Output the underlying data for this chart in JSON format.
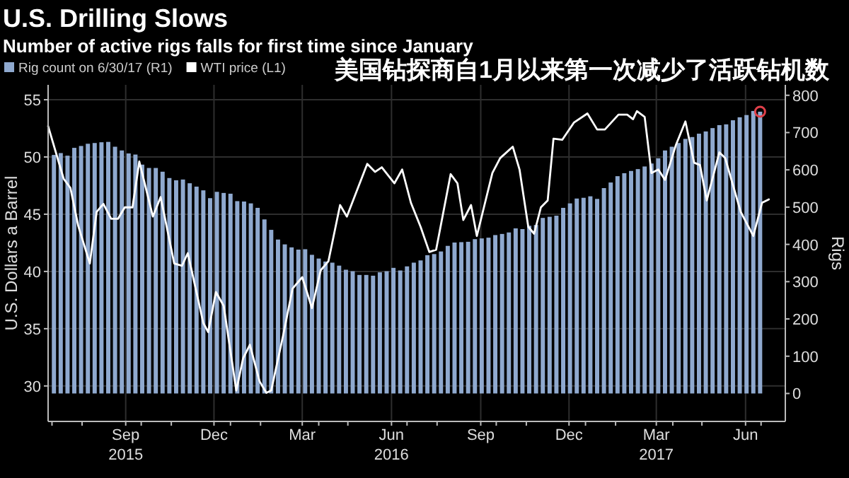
{
  "chart_data": {
    "type": "bar",
    "title": "U.S. Drilling Slows",
    "subtitle": "Number of active rigs falls for first time since January",
    "annotations": [
      "美国钻探商自1月以来第一次减少了活跃钻机数"
    ],
    "ylabel": "U.S. Dollars a Barrel",
    "y2label": "Rigs",
    "legend": "top left",
    "grid": true,
    "xlim": [
      "2015-06-27",
      "2017-07-26"
    ],
    "xticks": [
      {
        "value": "2015-07-01",
        "label": null
      },
      {
        "value": "2015-08-01",
        "label": null
      },
      {
        "value": "2015-09-15",
        "label": "Sep\n2015"
      },
      {
        "value": "2015-10-01",
        "label": null
      },
      {
        "value": "2015-11-01",
        "label": null
      },
      {
        "value": "2015-12-15",
        "label": "Dec"
      },
      {
        "value": "2016-01-01",
        "label": null
      },
      {
        "value": "2016-02-01",
        "label": null
      },
      {
        "value": "2016-03-15",
        "label": "Mar"
      },
      {
        "value": "2016-04-01",
        "label": null
      },
      {
        "value": "2016-05-01",
        "label": null
      },
      {
        "value": "2016-06-15",
        "label": "Jun\n2016"
      },
      {
        "value": "2016-07-01",
        "label": null
      },
      {
        "value": "2016-08-01",
        "label": null
      },
      {
        "value": "2016-09-15",
        "label": "Sep"
      },
      {
        "value": "2016-10-01",
        "label": null
      },
      {
        "value": "2016-11-01",
        "label": null
      },
      {
        "value": "2016-12-15",
        "label": "Dec"
      },
      {
        "value": "2017-01-01",
        "label": null
      },
      {
        "value": "2017-02-01",
        "label": null
      },
      {
        "value": "2017-03-15",
        "label": "Mar\n2017"
      },
      {
        "value": "2017-04-01",
        "label": null
      },
      {
        "value": "2017-05-01",
        "label": null
      },
      {
        "value": "2017-06-15",
        "label": "Jun"
      },
      {
        "value": "2017-07-01",
        "label": null
      }
    ],
    "ylim": [
      26.9,
      56.3
    ],
    "yticks": [
      30,
      35,
      40,
      45,
      50,
      55
    ],
    "y2lim": [
      -75,
      828
    ],
    "y2ticks": [
      0,
      100,
      200,
      300,
      400,
      500,
      600,
      700,
      800
    ],
    "x": [
      "2015-07-03",
      "2015-07-10",
      "2015-07-17",
      "2015-07-24",
      "2015-07-31",
      "2015-08-07",
      "2015-08-14",
      "2015-08-21",
      "2015-08-28",
      "2015-09-04",
      "2015-09-11",
      "2015-09-18",
      "2015-09-25",
      "2015-10-02",
      "2015-10-09",
      "2015-10-16",
      "2015-10-23",
      "2015-10-30",
      "2015-11-06",
      "2015-11-13",
      "2015-11-20",
      "2015-11-27",
      "2015-12-04",
      "2015-12-11",
      "2015-12-18",
      "2015-12-25",
      "2016-01-01",
      "2016-01-08",
      "2016-01-15",
      "2016-01-22",
      "2016-01-29",
      "2016-02-05",
      "2016-02-12",
      "2016-02-19",
      "2016-02-26",
      "2016-03-04",
      "2016-03-11",
      "2016-03-18",
      "2016-03-25",
      "2016-04-01",
      "2016-04-08",
      "2016-04-15",
      "2016-04-22",
      "2016-04-29",
      "2016-05-06",
      "2016-05-13",
      "2016-05-20",
      "2016-05-27",
      "2016-06-03",
      "2016-06-10",
      "2016-06-17",
      "2016-06-24",
      "2016-07-01",
      "2016-07-08",
      "2016-07-15",
      "2016-07-22",
      "2016-07-29",
      "2016-08-05",
      "2016-08-12",
      "2016-08-19",
      "2016-08-26",
      "2016-09-02",
      "2016-09-09",
      "2016-09-16",
      "2016-09-23",
      "2016-09-30",
      "2016-10-07",
      "2016-10-14",
      "2016-10-21",
      "2016-10-28",
      "2016-11-04",
      "2016-11-11",
      "2016-11-18",
      "2016-11-25",
      "2016-12-02",
      "2016-12-09",
      "2016-12-16",
      "2016-12-23",
      "2016-12-30",
      "2017-01-06",
      "2017-01-13",
      "2017-01-20",
      "2017-01-27",
      "2017-02-03",
      "2017-02-10",
      "2017-02-17",
      "2017-02-24",
      "2017-03-03",
      "2017-03-10",
      "2017-03-17",
      "2017-03-24",
      "2017-03-31",
      "2017-04-07",
      "2017-04-14",
      "2017-04-21",
      "2017-04-28",
      "2017-05-05",
      "2017-05-12",
      "2017-05-19",
      "2017-05-26",
      "2017-06-02",
      "2017-06-09",
      "2017-06-16",
      "2017-06-23",
      "2017-06-30"
    ],
    "series": [
      {
        "name": "Rig count on 6/30/17 (R1)",
        "axis": "y2",
        "color": "#8fa9cf",
        "values": [
          640,
          645,
          638,
          659,
          664,
          670,
          672,
          674,
          675,
          662,
          652,
          644,
          641,
          614,
          605,
          605,
          595,
          578,
          572,
          574,
          564,
          555,
          545,
          524,
          541,
          538,
          536,
          516,
          515,
          510,
          498,
          467,
          439,
          413,
          400,
          392,
          386,
          387,
          372,
          362,
          354,
          351,
          343,
          332,
          328,
          318,
          318,
          316,
          325,
          328,
          337,
          330,
          341,
          351,
          357,
          371,
          374,
          381,
          396,
          405,
          406,
          407,
          414,
          416,
          418,
          425,
          428,
          432,
          443,
          441,
          450,
          452,
          471,
          474,
          477,
          498,
          510,
          523,
          525,
          529,
          522,
          551,
          566,
          583,
          591,
          597,
          602,
          609,
          617,
          631,
          652,
          662,
          672,
          683,
          688,
          697,
          703,
          712,
          720,
          722,
          733,
          741,
          747,
          758,
          756
        ]
      },
      {
        "name": "WTI price (L1)",
        "type": "line",
        "color": "#ffffff",
        "x": [
          "2015-06-27",
          "2015-07-13",
          "2015-07-20",
          "2015-07-28",
          "2015-08-09",
          "2015-08-16",
          "2015-08-23",
          "2015-08-31",
          "2015-09-07",
          "2015-09-14",
          "2015-09-22",
          "2015-09-29",
          "2015-10-13",
          "2015-10-21",
          "2015-11-04",
          "2015-11-12",
          "2015-11-18",
          "2015-12-04",
          "2015-12-09",
          "2015-12-17",
          "2015-12-25",
          "2016-01-07",
          "2016-01-14",
          "2016-01-21",
          "2016-01-31",
          "2016-02-07",
          "2016-02-12",
          "2016-02-24",
          "2016-03-05",
          "2016-03-15",
          "2016-03-25",
          "2016-04-03",
          "2016-04-11",
          "2016-04-23",
          "2016-04-30",
          "2016-05-21",
          "2016-05-29",
          "2016-06-05",
          "2016-06-18",
          "2016-06-26",
          "2016-07-05",
          "2016-07-15",
          "2016-07-24",
          "2016-07-31",
          "2016-08-15",
          "2016-08-22",
          "2016-08-28",
          "2016-09-05",
          "2016-09-11",
          "2016-09-27",
          "2016-10-05",
          "2016-10-18",
          "2016-10-25",
          "2016-11-03",
          "2016-11-09",
          "2016-11-16",
          "2016-11-23",
          "2016-11-29",
          "2016-12-08",
          "2016-12-20",
          "2017-01-03",
          "2017-01-13",
          "2017-01-21",
          "2017-02-04",
          "2017-02-13",
          "2017-02-19",
          "2017-02-23",
          "2017-03-03",
          "2017-03-10",
          "2017-03-17",
          "2017-03-24",
          "2017-04-04",
          "2017-04-14",
          "2017-04-23",
          "2017-04-29",
          "2017-05-06",
          "2017-05-19",
          "2017-05-25",
          "2017-06-10",
          "2017-06-23",
          "2017-07-02",
          "2017-07-09"
        ],
        "values": [
          52.7,
          48.1,
          47.3,
          44.0,
          40.7,
          45.2,
          45.9,
          44.6,
          44.6,
          45.6,
          45.6,
          49.6,
          44.8,
          46.5,
          40.7,
          40.5,
          41.6,
          35.5,
          34.7,
          38.2,
          37.0,
          29.6,
          32.4,
          33.6,
          30.4,
          29.4,
          29.6,
          34.3,
          38.5,
          39.5,
          36.8,
          40.1,
          40.9,
          45.8,
          44.8,
          49.4,
          48.7,
          49.1,
          47.7,
          48.9,
          46.0,
          43.9,
          41.7,
          41.9,
          48.5,
          47.7,
          44.5,
          45.8,
          43.1,
          48.6,
          49.9,
          50.9,
          48.9,
          43.9,
          43.3,
          45.6,
          46.2,
          51.6,
          51.5,
          53.0,
          53.8,
          52.4,
          52.4,
          53.7,
          53.7,
          53.3,
          54.0,
          53.5,
          48.6,
          48.9,
          48.0,
          51.0,
          53.1,
          49.5,
          49.3,
          46.2,
          50.4,
          49.9,
          45.2,
          43.1,
          46.0,
          46.3
        ]
      },
      {
        "type": "scatter",
        "axis": "y2",
        "color": "#e0404a",
        "marker": "circle",
        "x": [
          "2017-06-30"
        ],
        "values": [
          756
        ]
      }
    ]
  }
}
